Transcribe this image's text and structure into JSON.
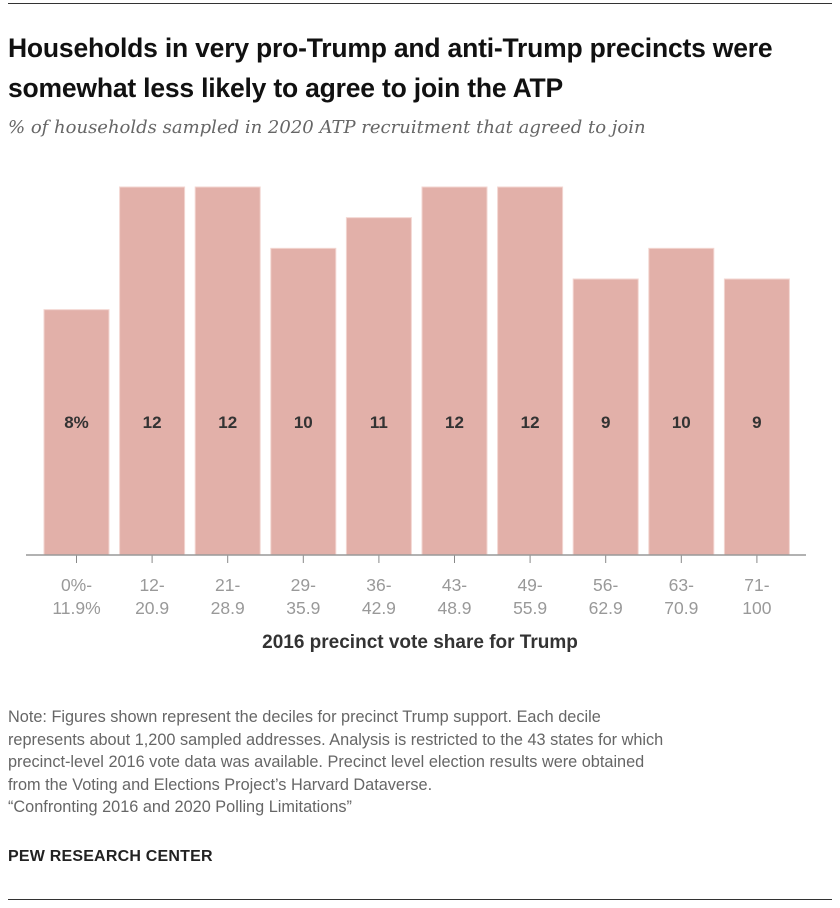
{
  "title": "Households in very pro-Trump and anti-Trump precincts were somewhat less likely to agree to join the ATP",
  "subtitle": "% of households sampled in 2020 ATP recruitment that agreed to join",
  "note_lines": [
    "Note: Figures shown represent the deciles for precinct Trump support. Each decile",
    "represents about 1,200 sampled addresses. Analysis is restricted to the 43 states for which",
    "precinct-level 2016 vote data was available. Precinct level election results were obtained",
    "from the Voting and Elections Project’s Harvard Dataverse.",
    "“Confronting 2016 and 2020 Polling Limitations”"
  ],
  "source": "PEW RESEARCH CENTER",
  "colors": {
    "bar": "#e2b0a9",
    "axis": "#999999",
    "tick_label": "#999999"
  },
  "chart_data": {
    "type": "bar",
    "title": "Households in very pro-Trump and anti-Trump precincts were somewhat less likely to agree to join the ATP",
    "subtitle": "% of households sampled in 2020 ATP recruitment that agreed to join",
    "xlabel": "2016 precinct vote share for Trump",
    "ylabel": "",
    "categories": [
      [
        "0%-",
        "11.9%"
      ],
      [
        "12-",
        "20.9"
      ],
      [
        "21-",
        "28.9"
      ],
      [
        "29-",
        "35.9"
      ],
      [
        "36-",
        "42.9"
      ],
      [
        "43-",
        "48.9"
      ],
      [
        "49-",
        "55.9"
      ],
      [
        "56-",
        "62.9"
      ],
      [
        "63-",
        "70.9"
      ],
      [
        "71-",
        "100"
      ]
    ],
    "values": [
      8,
      12,
      12,
      10,
      11,
      12,
      12,
      9,
      10,
      9
    ],
    "data_labels": [
      "8%",
      "12",
      "12",
      "10",
      "11",
      "12",
      "12",
      "9",
      "10",
      "9"
    ],
    "ylim": [
      0,
      12
    ],
    "grid": false,
    "legend": "none"
  }
}
